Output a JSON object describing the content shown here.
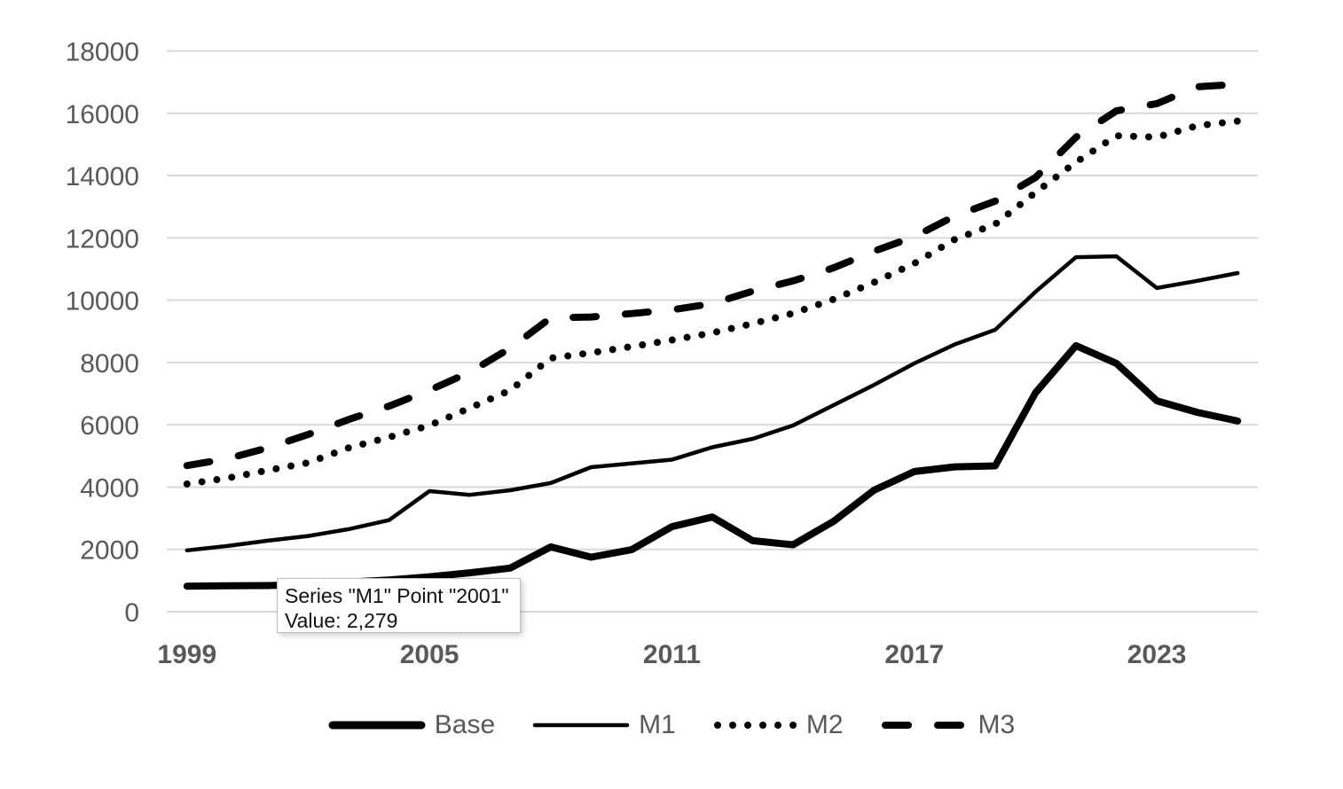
{
  "chart_data": {
    "type": "line",
    "title": "",
    "xlabel": "",
    "ylabel": "",
    "x": [
      1999,
      2000,
      2001,
      2002,
      2003,
      2004,
      2005,
      2006,
      2007,
      2008,
      2009,
      2010,
      2011,
      2012,
      2013,
      2014,
      2015,
      2016,
      2017,
      2018,
      2019,
      2020,
      2021,
      2022,
      2023,
      2024,
      2025
    ],
    "x_tick_labels": [
      "1999",
      "2005",
      "2011",
      "2017",
      "2023"
    ],
    "x_tick_indices": [
      0,
      6,
      12,
      18,
      24
    ],
    "y_ticks": [
      0,
      2000,
      4000,
      6000,
      8000,
      10000,
      12000,
      14000,
      16000,
      18000
    ],
    "ylim": [
      0,
      18000
    ],
    "grid": "horizontal",
    "legend_position": "bottom",
    "series": [
      {
        "name": "Base",
        "style": "solid-thick",
        "values": [
          820,
          830,
          840,
          870,
          950,
          1020,
          1120,
          1250,
          1400,
          2080,
          1750,
          1990,
          2730,
          3040,
          2280,
          2150,
          2900,
          3900,
          4500,
          4650,
          4680,
          7030,
          8540,
          7970,
          6770,
          6400,
          6120
        ]
      },
      {
        "name": "M1",
        "style": "solid-thin",
        "values": [
          1970,
          2110,
          2279,
          2430,
          2650,
          2940,
          3870,
          3750,
          3900,
          4130,
          4640,
          4760,
          4880,
          5280,
          5550,
          5980,
          6630,
          7280,
          7970,
          8580,
          9050,
          10270,
          11380,
          11410,
          10390,
          10620,
          10870
        ]
      },
      {
        "name": "M2",
        "style": "dotted",
        "values": [
          4100,
          4290,
          4540,
          4780,
          5260,
          5600,
          5980,
          6540,
          7110,
          8140,
          8310,
          8510,
          8720,
          8950,
          9250,
          9580,
          10030,
          10570,
          11180,
          11950,
          12440,
          13460,
          14430,
          15280,
          15230,
          15600,
          15750
        ]
      },
      {
        "name": "M3",
        "style": "dashed",
        "values": [
          4690,
          4910,
          5260,
          5690,
          6170,
          6600,
          7110,
          7690,
          8460,
          9430,
          9460,
          9570,
          9690,
          9890,
          10290,
          10620,
          11040,
          11570,
          12040,
          12700,
          13180,
          13940,
          15230,
          16080,
          16310,
          16850,
          16930
        ]
      }
    ]
  },
  "tooltip": {
    "line1": "Series \"M1\" Point \"2001\"",
    "line2": "Value: 2,279"
  },
  "colors": {
    "line": "#000000",
    "axis_label": "#595959",
    "gridline": "#d9d9d9",
    "tooltip_border": "#bdbdbd",
    "background": "#ffffff"
  }
}
